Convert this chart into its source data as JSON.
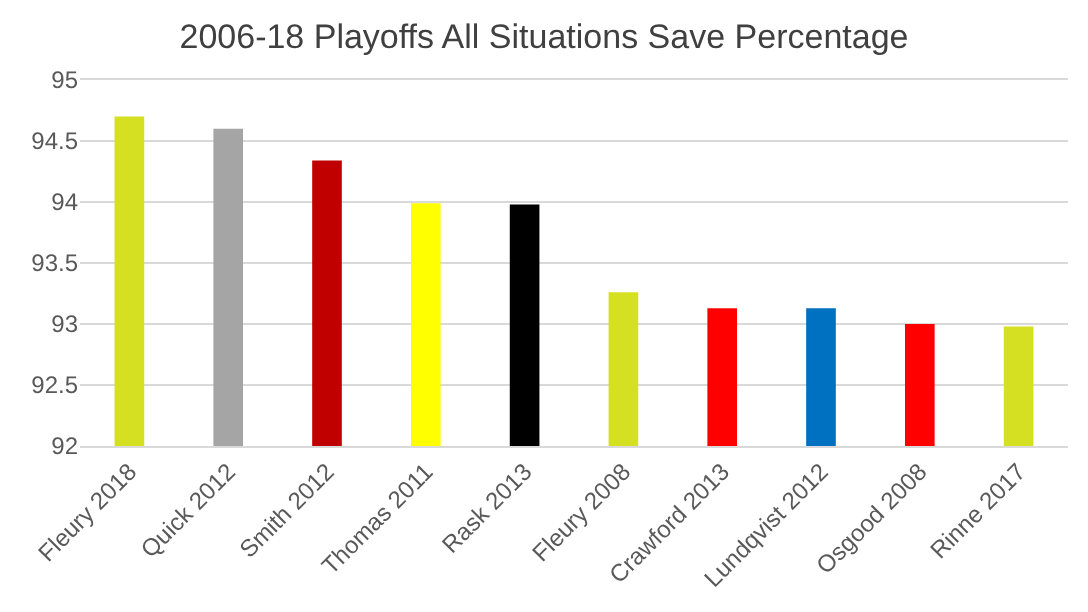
{
  "chart_data": {
    "type": "bar",
    "title": "2006-18 Playoffs All Situations Save Percentage",
    "categories": [
      "Fleury 2018",
      "Quick 2012",
      "Smith 2012",
      "Thomas 2011",
      "Rask 2013",
      "Fleury 2008",
      "Crawford 2013",
      "Lundqvist 2012",
      "Osgood 2008",
      "Rinne 2017"
    ],
    "values": [
      94.7,
      94.6,
      94.34,
      93.99,
      93.98,
      93.26,
      93.13,
      93.13,
      93.0,
      92.98
    ],
    "colors": [
      "#d4e021",
      "#a5a5a5",
      "#c00000",
      "#ffff00",
      "#000000",
      "#d4e021",
      "#ff0000",
      "#0070c0",
      "#ff0000",
      "#d4e021"
    ],
    "ylim": [
      92,
      95
    ],
    "yticks": [
      92,
      {
        "value": 92.5,
        "label": "92.5"
      },
      93,
      {
        "value": 93.5,
        "label": "93.5"
      },
      94,
      {
        "value": 94.5,
        "label": "94.5"
      },
      95
    ],
    "grid": "y"
  }
}
